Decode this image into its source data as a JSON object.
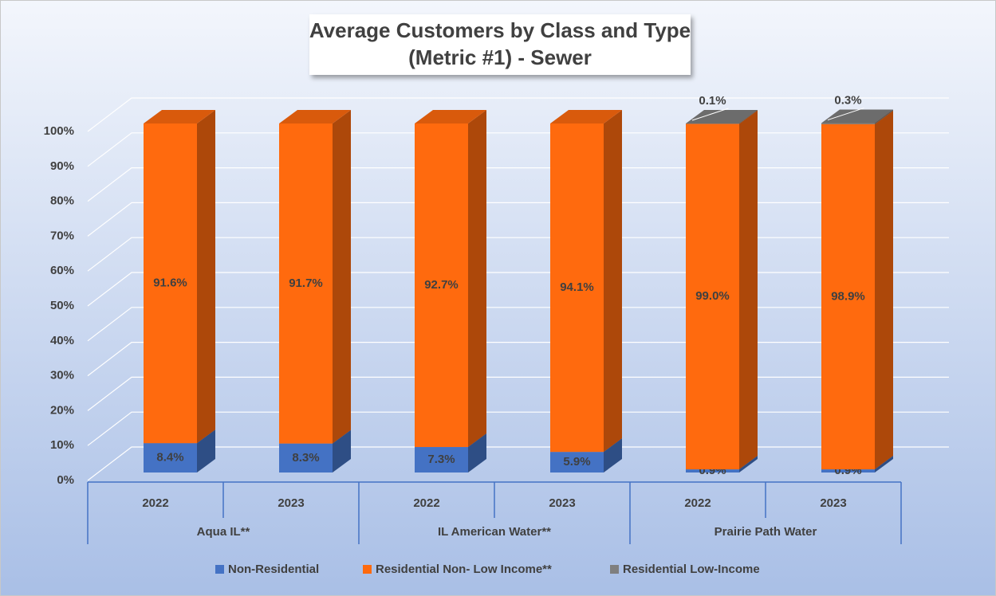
{
  "chart_data": {
    "type": "bar3d_stacked",
    "title": [
      "Average Customers by Class and Type",
      "(Metric #1) - Sewer"
    ],
    "categories": [
      "2022",
      "2023",
      "2022",
      "2023",
      "2022",
      "2023"
    ],
    "groups": [
      {
        "name": "Aqua IL**",
        "span": 2
      },
      {
        "name": "IL American Water**",
        "span": 2
      },
      {
        "name": "Prairie Path Water",
        "span": 2
      }
    ],
    "series": [
      {
        "name": "Non-Residential",
        "color": "#4472c4",
        "values": [
          8.4,
          8.3,
          7.3,
          5.9,
          0.9,
          0.9
        ],
        "value_labels": [
          "8.4%",
          "8.3%",
          "7.3%",
          "5.9%",
          "0.9%",
          "0.9%"
        ]
      },
      {
        "name": "Residential Non- Low Income**",
        "color": "#ff6a0e",
        "values": [
          91.6,
          91.7,
          92.7,
          94.1,
          99.0,
          98.9
        ],
        "value_labels": [
          "91.6%",
          "91.7%",
          "92.7%",
          "94.1%",
          "99.0%",
          "98.9%"
        ]
      },
      {
        "name": "Residential Low-Income",
        "color": "#7f7f7f",
        "values": [
          null,
          null,
          null,
          null,
          0.1,
          0.3
        ],
        "value_labels": [
          null,
          null,
          null,
          null,
          "0.1%",
          "0.3%"
        ]
      }
    ],
    "ylim": [
      0,
      100
    ],
    "yticks": [
      {
        "value": 0,
        "label": "0%"
      },
      {
        "value": 10,
        "label": "10%"
      },
      {
        "value": 20,
        "label": "20%"
      },
      {
        "value": 30,
        "label": "30%"
      },
      {
        "value": 40,
        "label": "40%"
      },
      {
        "value": 50,
        "label": "50%"
      },
      {
        "value": 60,
        "label": "60%"
      },
      {
        "value": 70,
        "label": "70%"
      },
      {
        "value": 80,
        "label": "80%"
      },
      {
        "value": 90,
        "label": "90%"
      },
      {
        "value": 100,
        "label": "100%"
      }
    ],
    "grid": true,
    "legend": "bottom"
  }
}
